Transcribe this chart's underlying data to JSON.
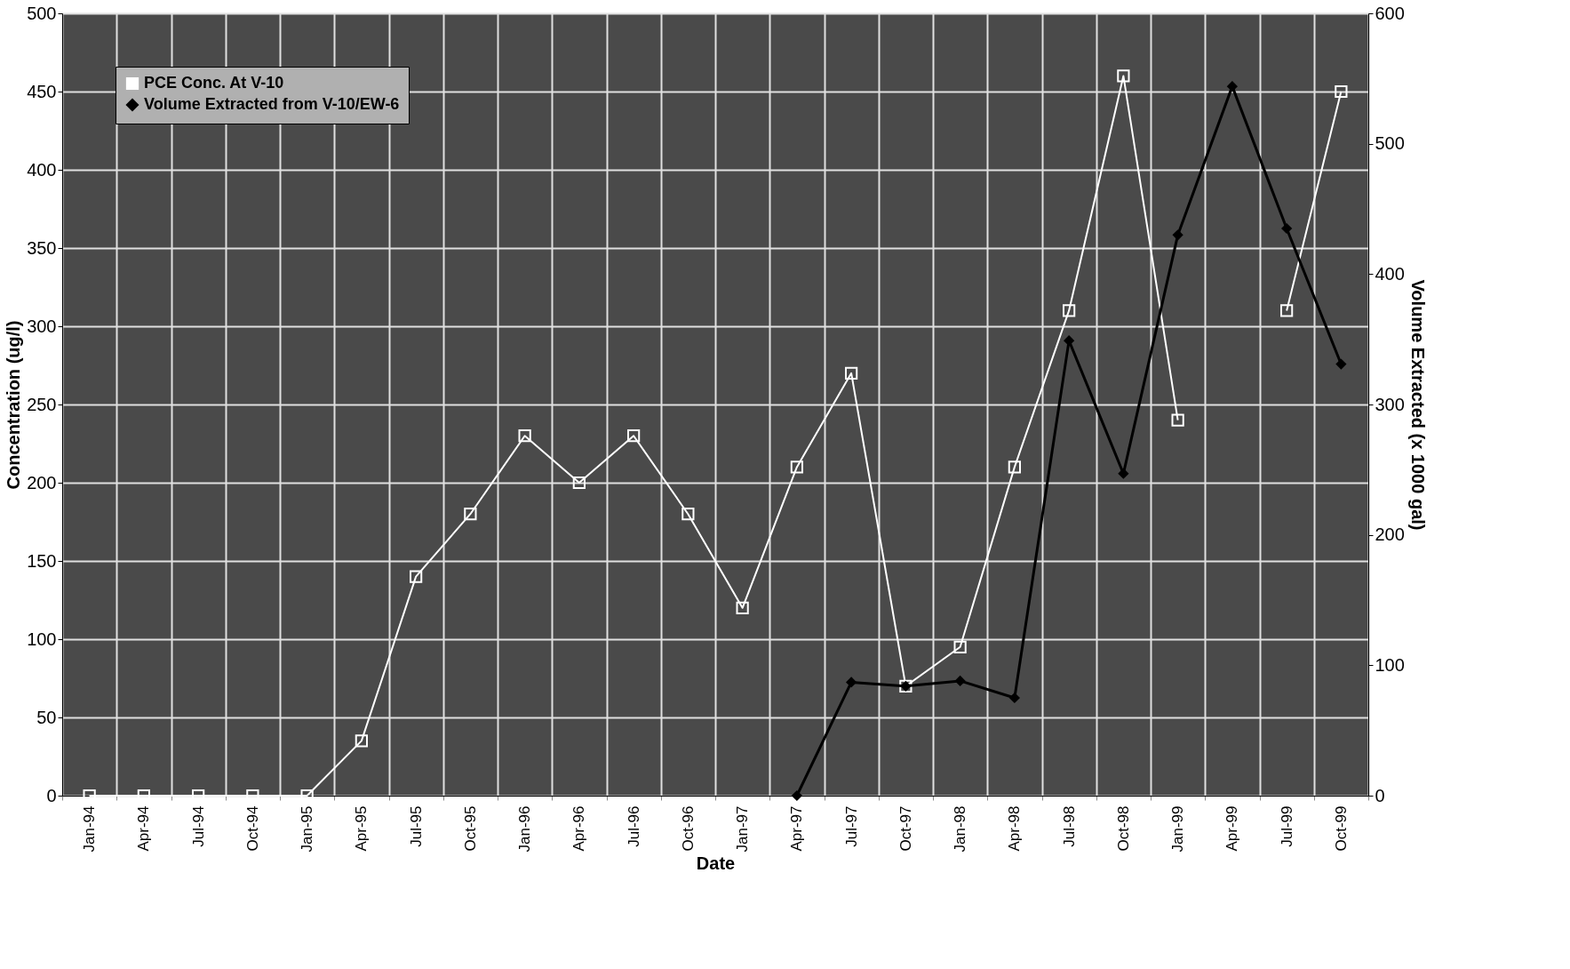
{
  "chart_data": {
    "type": "line",
    "categories": [
      "Jan-94",
      "Apr-94",
      "Jul-94",
      "Oct-94",
      "Jan-95",
      "Apr-95",
      "Jul-95",
      "Oct-95",
      "Jan-96",
      "Apr-96",
      "Jul-96",
      "Oct-96",
      "Jan-97",
      "Apr-97",
      "Jul-97",
      "Oct-97",
      "Jan-98",
      "Apr-98",
      "Jul-98",
      "Oct-98",
      "Jan-99",
      "Apr-99",
      "Jul-99",
      "Oct-99"
    ],
    "series": [
      {
        "name": "PCE Conc. At V-10",
        "color": "#ffffff",
        "marker": "square",
        "values": [
          0,
          0,
          0,
          0,
          0,
          35,
          140,
          180,
          230,
          200,
          230,
          180,
          120,
          210,
          270,
          70,
          95,
          210,
          310,
          460,
          240,
          null,
          310,
          450
        ]
      },
      {
        "name": "Volume Extracted from V-10/EW-6",
        "color": "#000000",
        "marker": "diamond",
        "axis": "y2",
        "values": [
          null,
          null,
          null,
          null,
          null,
          null,
          null,
          null,
          null,
          null,
          null,
          null,
          null,
          0,
          87,
          84,
          88,
          75,
          349,
          247,
          430,
          544,
          435,
          331
        ]
      }
    ],
    "xlabel": "Date",
    "ylabel": "Concentration (ug/l)",
    "y2label": "Volume Extracted (x 1000 gal)",
    "ylim": [
      0,
      500
    ],
    "yticks": [
      0,
      50,
      100,
      150,
      200,
      250,
      300,
      350,
      400,
      450,
      500
    ],
    "y2lim": [
      0,
      600
    ],
    "y2ticks": [
      0,
      100,
      200,
      300,
      400,
      500,
      600
    ],
    "grid": true,
    "legend": "top left"
  }
}
